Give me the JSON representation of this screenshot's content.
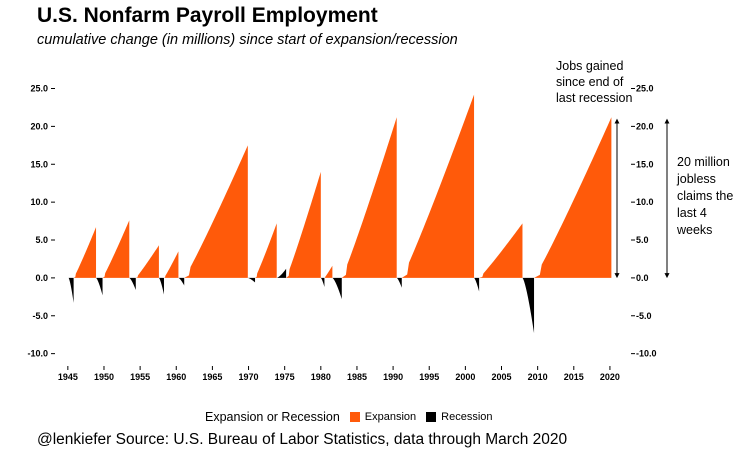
{
  "title": "U.S. Nonfarm Payroll Employment",
  "subtitle": "cumulative change (in millions) since start of expansion/recession",
  "caption": "@lenkiefer Source: U.S. Bureau of Labor Statistics, data through March 2020",
  "legend": {
    "title": "Expansion or Recession",
    "items": [
      {
        "label": "Expansion",
        "color": "#FF5A0A"
      },
      {
        "label": "Recession",
        "color": "#000000"
      }
    ]
  },
  "annotations": {
    "jobs_gained": [
      "Jobs gained",
      "since end of",
      "last recession"
    ],
    "jobless": [
      "20 million",
      "jobless",
      "claims the",
      "last 4",
      "weeks"
    ]
  },
  "chart_data": {
    "type": "area",
    "xlabel": "",
    "ylabel": "",
    "xlim": [
      1943.5,
      2022.5
    ],
    "ylim": [
      -11.5,
      28.5
    ],
    "x_ticks": [
      1945,
      1950,
      1955,
      1960,
      1965,
      1970,
      1975,
      1980,
      1985,
      1990,
      1995,
      2000,
      2005,
      2010,
      2015,
      2020
    ],
    "x_tick_labels": [
      "1945",
      "1950",
      "1955",
      "1960",
      "1965",
      "1970",
      "1975",
      "1980",
      "1985",
      "1990",
      "1995",
      "2000",
      "2005",
      "2010",
      "2015",
      "2020"
    ],
    "y_ticks": [
      -10,
      -5,
      0,
      5,
      10,
      15,
      20,
      25
    ],
    "y_tick_labels_left": [
      "-10.0",
      "-5.0",
      "0.0",
      "5.0",
      "10.0",
      "15.0",
      "20.0",
      "25.0"
    ],
    "y_tick_labels_right": [
      "-10.0",
      "-5.0",
      "0.0",
      "5.0",
      "10.0",
      "15.0",
      "20.0",
      "25.0"
    ],
    "grid": false,
    "legend_position": "bottom",
    "series": [
      {
        "name": "Recession",
        "start": 1945.1,
        "end": 1945.8,
        "peak": -3.3
      },
      {
        "name": "Expansion",
        "start": 1945.8,
        "end": 1948.9,
        "peak": 6.7
      },
      {
        "name": "Recession",
        "start": 1948.9,
        "end": 1949.8,
        "peak": -2.3
      },
      {
        "name": "Expansion",
        "start": 1949.8,
        "end": 1953.5,
        "peak": 7.6
      },
      {
        "name": "Recession",
        "start": 1953.5,
        "end": 1954.4,
        "peak": -1.6
      },
      {
        "name": "Expansion",
        "start": 1954.4,
        "end": 1957.6,
        "peak": 4.3
      },
      {
        "name": "Recession",
        "start": 1957.6,
        "end": 1958.3,
        "peak": -2.2
      },
      {
        "name": "Expansion",
        "start": 1958.3,
        "end": 1960.3,
        "peak": 3.5
      },
      {
        "name": "Recession",
        "start": 1960.3,
        "end": 1961.1,
        "peak": -1.0
      },
      {
        "name": "Expansion",
        "start": 1961.1,
        "end": 1969.9,
        "peak": 17.5
      },
      {
        "name": "Recession",
        "start": 1969.9,
        "end": 1970.9,
        "peak": -0.6
      },
      {
        "name": "Expansion",
        "start": 1970.9,
        "end": 1973.9,
        "peak": 7.2
      },
      {
        "name": "Recession",
        "start": 1973.9,
        "end": 1975.2,
        "peak": 1.2
      },
      {
        "name": "Expansion",
        "start": 1975.2,
        "end": 1980.0,
        "peak": 14.0
      },
      {
        "name": "Recession",
        "start": 1980.0,
        "end": 1980.5,
        "peak": -1.2
      },
      {
        "name": "Expansion",
        "start": 1980.5,
        "end": 1981.6,
        "peak": 1.6
      },
      {
        "name": "Recession",
        "start": 1981.6,
        "end": 1982.9,
        "peak": -2.8
      },
      {
        "name": "Expansion",
        "start": 1982.9,
        "end": 1990.5,
        "peak": 21.2
      },
      {
        "name": "Recession",
        "start": 1990.5,
        "end": 1991.2,
        "peak": -1.3
      },
      {
        "name": "Expansion",
        "start": 1991.2,
        "end": 2001.2,
        "peak": 24.2
      },
      {
        "name": "Recession",
        "start": 2001.2,
        "end": 2001.9,
        "peak": -1.8
      },
      {
        "name": "Expansion",
        "start": 2001.9,
        "end": 2007.9,
        "peak": 7.2
      },
      {
        "name": "Recession",
        "start": 2007.9,
        "end": 2009.5,
        "peak": -7.3
      },
      {
        "name": "Expansion",
        "start": 2009.5,
        "end": 2020.2,
        "peak": 21.2
      }
    ]
  }
}
